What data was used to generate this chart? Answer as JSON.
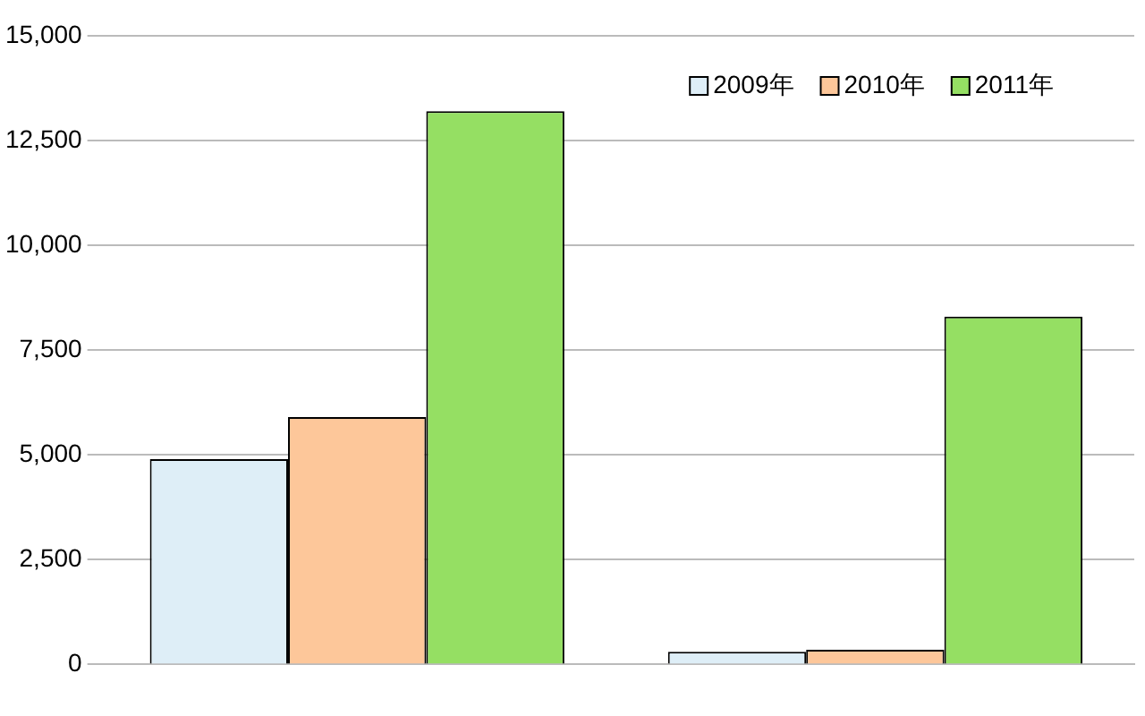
{
  "chart_data": {
    "type": "bar",
    "categories": [
      null,
      null
    ],
    "series": [
      {
        "name": "2009年",
        "color": "#deeef7",
        "values": [
          4900,
          300
        ]
      },
      {
        "name": "2010年",
        "color": "#fdc79a",
        "values": [
          5900,
          350
        ]
      },
      {
        "name": "2011年",
        "color": "#95df63",
        "values": [
          13200,
          8300
        ]
      }
    ],
    "ylim": [
      0,
      15000
    ],
    "yticks": [
      {
        "value": 0,
        "label": "0"
      },
      {
        "value": 2500,
        "label": "2,500"
      },
      {
        "value": 5000,
        "label": "5,000"
      },
      {
        "value": 7500,
        "label": "7,500"
      },
      {
        "value": 10000,
        "label": "10,000"
      },
      {
        "value": 12500,
        "label": "12,500"
      },
      {
        "value": 15000,
        "label": "15,000"
      }
    ],
    "grid": "y",
    "legend": "top right"
  }
}
